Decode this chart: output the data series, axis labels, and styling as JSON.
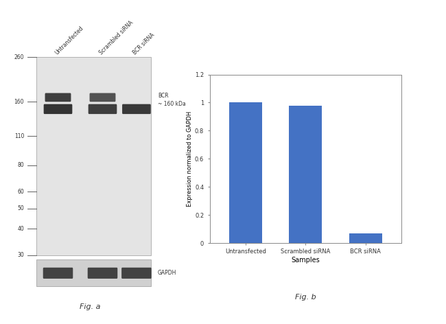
{
  "fig_a": {
    "lane_labels": [
      "Untransfected",
      "Scrambled siRNA",
      "BCR siRNA"
    ],
    "mw_markers": [
      260,
      160,
      110,
      80,
      60,
      50,
      40,
      30
    ],
    "bcr_label": "BCR\n~ 160 kDa",
    "gapdh_label": "GAPDH",
    "fig_label": "Fig. a",
    "gel_bg": "#e4e4e4",
    "gapdh_bg": "#d0d0d0",
    "band_color": "#1a1a1a"
  },
  "fig_b": {
    "categories": [
      "Untransfected",
      "Scrambled siRNA",
      "BCR siRNA"
    ],
    "values": [
      1.0,
      0.98,
      0.07
    ],
    "bar_color": "#4472c4",
    "xlabel": "Samples",
    "ylabel": "Expression normalized to GAPDH",
    "ylim": [
      0,
      1.2
    ],
    "yticks": [
      0.0,
      0.2,
      0.4,
      0.6,
      0.8,
      1.0,
      1.2
    ],
    "ytick_labels": [
      "0",
      "0.2",
      "0.4",
      "0.6",
      "0.8",
      "1",
      "1.2"
    ],
    "fig_label": "Fig. b",
    "bg_color": "#ffffff",
    "border_color": "#888888"
  },
  "background_color": "#ffffff"
}
